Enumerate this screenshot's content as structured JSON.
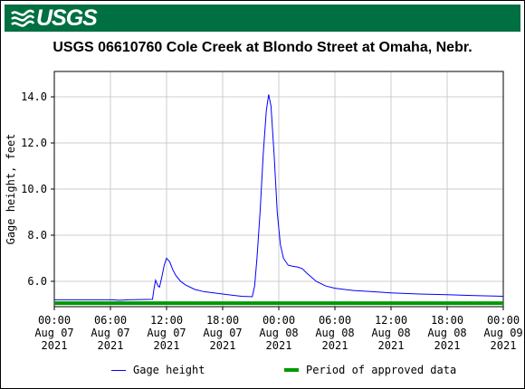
{
  "header": {
    "logo_text": "USGS",
    "banner_color": "#006f41"
  },
  "chart_data": {
    "type": "line",
    "title": "USGS 06610760 Cole Creek at Blondo Street at Omaha, Nebr.",
    "ylabel": "Gage height, feet",
    "xlabel": "",
    "xlim": [
      "2021-08-07 00:00",
      "2021-08-09 00:00"
    ],
    "ylim": [
      4.9,
      15.1
    ],
    "grid": true,
    "y_ticks": [
      {
        "value": 6.0,
        "label": "6.0"
      },
      {
        "value": 8.0,
        "label": "8.0"
      },
      {
        "value": 10.0,
        "label": "10.0"
      },
      {
        "value": 12.0,
        "label": "12.0"
      },
      {
        "value": 14.0,
        "label": "14.0"
      }
    ],
    "x_ticks": [
      {
        "t": "2021-08-07 00:00",
        "lines": [
          "00:00",
          "Aug 07",
          "2021"
        ]
      },
      {
        "t": "2021-08-07 06:00",
        "lines": [
          "06:00",
          "Aug 07",
          "2021"
        ]
      },
      {
        "t": "2021-08-07 12:00",
        "lines": [
          "12:00",
          "Aug 07",
          "2021"
        ]
      },
      {
        "t": "2021-08-07 18:00",
        "lines": [
          "18:00",
          "Aug 07",
          "2021"
        ]
      },
      {
        "t": "2021-08-08 00:00",
        "lines": [
          "00:00",
          "Aug 08",
          "2021"
        ]
      },
      {
        "t": "2021-08-08 06:00",
        "lines": [
          "06:00",
          "Aug 08",
          "2021"
        ]
      },
      {
        "t": "2021-08-08 12:00",
        "lines": [
          "12:00",
          "Aug 08",
          "2021"
        ]
      },
      {
        "t": "2021-08-08 18:00",
        "lines": [
          "18:00",
          "Aug 08",
          "2021"
        ]
      },
      {
        "t": "2021-08-09 00:00",
        "lines": [
          "00:00",
          "Aug 09",
          "2021"
        ]
      }
    ],
    "series": [
      {
        "name": "Gage height",
        "color": "#0000ff",
        "points": [
          [
            "2021-08-07 00:00",
            5.2
          ],
          [
            "2021-08-07 04:00",
            5.2
          ],
          [
            "2021-08-07 06:00",
            5.2
          ],
          [
            "2021-08-07 07:00",
            5.18
          ],
          [
            "2021-08-07 08:00",
            5.2
          ],
          [
            "2021-08-07 10:30",
            5.22
          ],
          [
            "2021-08-07 10:40",
            5.7
          ],
          [
            "2021-08-07 10:50",
            6.05
          ],
          [
            "2021-08-07 11:05",
            5.8
          ],
          [
            "2021-08-07 11:15",
            5.75
          ],
          [
            "2021-08-07 11:30",
            6.2
          ],
          [
            "2021-08-07 11:45",
            6.7
          ],
          [
            "2021-08-07 12:00",
            7.0
          ],
          [
            "2021-08-07 12:20",
            6.85
          ],
          [
            "2021-08-07 12:40",
            6.5
          ],
          [
            "2021-08-07 13:00",
            6.25
          ],
          [
            "2021-08-07 13:30",
            6.0
          ],
          [
            "2021-08-07 14:00",
            5.85
          ],
          [
            "2021-08-07 15:00",
            5.65
          ],
          [
            "2021-08-07 16:00",
            5.55
          ],
          [
            "2021-08-07 18:00",
            5.45
          ],
          [
            "2021-08-07 20:00",
            5.35
          ],
          [
            "2021-08-07 21:10",
            5.33
          ],
          [
            "2021-08-07 21:25",
            5.8
          ],
          [
            "2021-08-07 21:40",
            7.0
          ],
          [
            "2021-08-07 22:00",
            9.0
          ],
          [
            "2021-08-07 22:20",
            11.5
          ],
          [
            "2021-08-07 22:40",
            13.4
          ],
          [
            "2021-08-07 22:55",
            14.1
          ],
          [
            "2021-08-07 23:10",
            13.6
          ],
          [
            "2021-08-07 23:30",
            11.5
          ],
          [
            "2021-08-07 23:50",
            9.0
          ],
          [
            "2021-08-08 00:10",
            7.6
          ],
          [
            "2021-08-08 00:30",
            7.0
          ],
          [
            "2021-08-08 01:00",
            6.7
          ],
          [
            "2021-08-08 01:30",
            6.65
          ],
          [
            "2021-08-08 02:00",
            6.62
          ],
          [
            "2021-08-08 02:30",
            6.55
          ],
          [
            "2021-08-08 03:00",
            6.35
          ],
          [
            "2021-08-08 04:00",
            6.0
          ],
          [
            "2021-08-08 05:00",
            5.8
          ],
          [
            "2021-08-08 06:00",
            5.7
          ],
          [
            "2021-08-08 08:00",
            5.6
          ],
          [
            "2021-08-08 10:00",
            5.55
          ],
          [
            "2021-08-08 12:00",
            5.5
          ],
          [
            "2021-08-08 15:00",
            5.45
          ],
          [
            "2021-08-08 18:00",
            5.42
          ],
          [
            "2021-08-08 21:00",
            5.38
          ],
          [
            "2021-08-09 00:00",
            5.35
          ]
        ]
      },
      {
        "name": "Period of approved data",
        "color": "#009900",
        "x_range": [
          "2021-08-07 00:00",
          "2021-08-09 00:00"
        ],
        "y": 5.05
      }
    ],
    "legend": {
      "placement": "bottom",
      "items": [
        {
          "label": "Gage height",
          "color": "#0000ff",
          "style": "line"
        },
        {
          "label": "Period of approved data",
          "color": "#009900",
          "style": "bar"
        }
      ]
    }
  }
}
